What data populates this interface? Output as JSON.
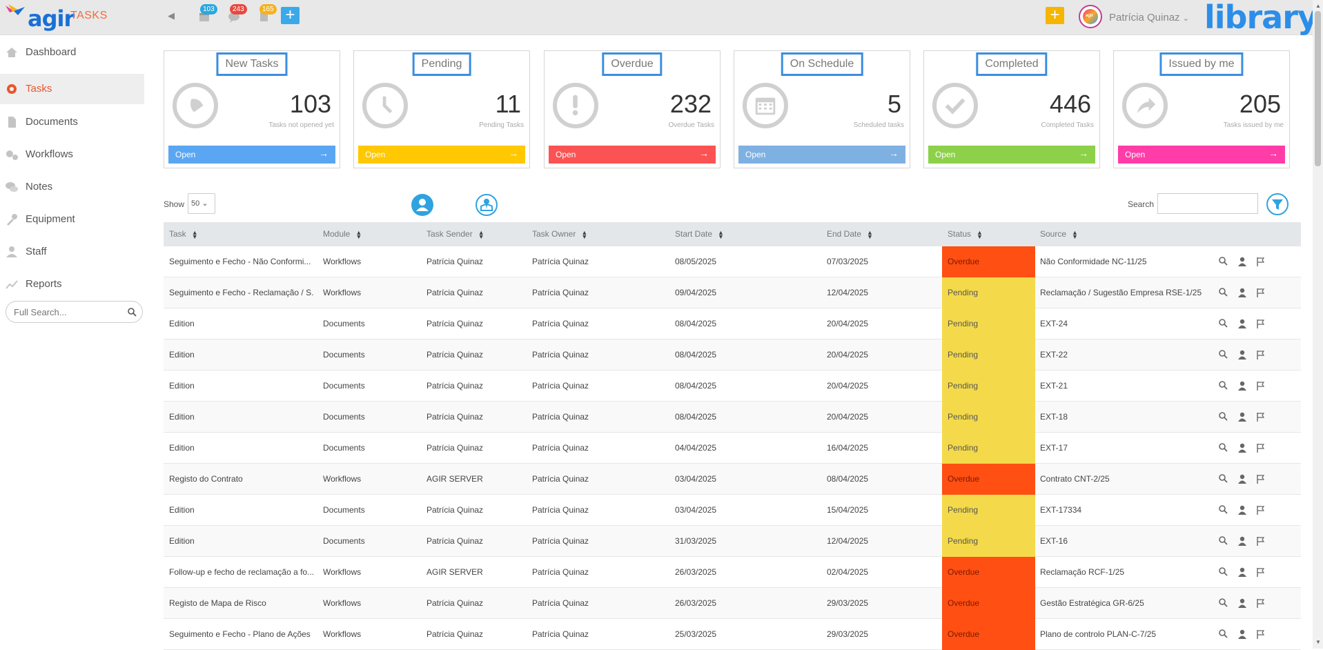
{
  "header": {
    "logo_text": "agir",
    "app_name": "TASKS",
    "badges": [
      {
        "icon": "calendar-icon",
        "count": "103",
        "color": "#29a8e0"
      },
      {
        "icon": "chat-icon",
        "count": "243",
        "color": "#e8483f"
      },
      {
        "icon": "document-icon",
        "count": "165",
        "color": "#f5b21c"
      }
    ],
    "user_name": "Patrícia Quinaz",
    "avatar_text": "agir",
    "library_label": "library",
    "colors": {
      "plus_blue": "#3aa9ea",
      "plus_yellow": "#f5b500"
    }
  },
  "sidebar": {
    "items": [
      {
        "label": "Dashboard",
        "icon": "home-icon"
      },
      {
        "label": "Tasks",
        "icon": "gear-icon",
        "active": true
      },
      {
        "label": "Documents",
        "icon": "document-icon"
      },
      {
        "label": "Workflows",
        "icon": "gears-icon"
      },
      {
        "label": "Notes",
        "icon": "chat-icon"
      },
      {
        "label": "Equipment",
        "icon": "wrench-icon"
      },
      {
        "label": "Staff",
        "icon": "person-icon"
      },
      {
        "label": "Reports",
        "icon": "chart-icon"
      }
    ],
    "search_placeholder": "Full Search..."
  },
  "cards": [
    {
      "title": "New Tasks",
      "count": "103",
      "subtitle": "Tasks not opened yet",
      "open": "Open",
      "color": "#5aa6f3",
      "icon": "bell-icon"
    },
    {
      "title": "Pending",
      "count": "11",
      "subtitle": "Pending Tasks",
      "open": "Open",
      "color": "#ffc800",
      "icon": "clock-icon"
    },
    {
      "title": "Overdue",
      "count": "232",
      "subtitle": "Overdue Tasks",
      "open": "Open",
      "color": "#fb5353",
      "icon": "exclamation-icon"
    },
    {
      "title": "On Schedule",
      "count": "5",
      "subtitle": "Scheduled tasks",
      "open": "Open",
      "color": "#7fb0e2",
      "icon": "calendar-icon"
    },
    {
      "title": "Completed",
      "count": "446",
      "subtitle": "Completed Tasks",
      "open": "Open",
      "color": "#8dd14a",
      "icon": "check-icon"
    },
    {
      "title": "Issued by me",
      "count": "205",
      "subtitle": "Tasks issued by me",
      "open": "Open",
      "color": "#ff3ca8",
      "icon": "share-arrow-icon"
    }
  ],
  "controls": {
    "show_label": "Show",
    "show_value": "50",
    "search_label": "Search"
  },
  "table": {
    "headers": [
      "Task",
      "Module",
      "Task Sender",
      "Task Owner",
      "Start Date",
      "End Date",
      "Status",
      "Source"
    ],
    "status_colors": {
      "Overdue": "#ff4f12",
      "Pending": "#f4da4a"
    },
    "rows": [
      {
        "task": "Seguimento e Fecho - Não Conformi...",
        "module": "Workflows",
        "sender": "Patrícia Quinaz",
        "owner": "Patrícia Quinaz",
        "start": "08/05/2025",
        "end": "07/03/2025",
        "status": "Overdue",
        "source": "Não Conformidade NC-11/25"
      },
      {
        "task": "Seguimento e Fecho - Reclamação / S...",
        "module": "Workflows",
        "sender": "Patrícia Quinaz",
        "owner": "Patrícia Quinaz",
        "start": "09/04/2025",
        "end": "12/04/2025",
        "status": "Pending",
        "source": "Reclamação / Sugestão Empresa RSE-1/25"
      },
      {
        "task": "Edition",
        "module": "Documents",
        "sender": "Patrícia Quinaz",
        "owner": "Patrícia Quinaz",
        "start": "08/04/2025",
        "end": "20/04/2025",
        "status": "Pending",
        "source": "EXT-24"
      },
      {
        "task": "Edition",
        "module": "Documents",
        "sender": "Patrícia Quinaz",
        "owner": "Patrícia Quinaz",
        "start": "08/04/2025",
        "end": "20/04/2025",
        "status": "Pending",
        "source": "EXT-22"
      },
      {
        "task": "Edition",
        "module": "Documents",
        "sender": "Patrícia Quinaz",
        "owner": "Patrícia Quinaz",
        "start": "08/04/2025",
        "end": "20/04/2025",
        "status": "Pending",
        "source": "EXT-21"
      },
      {
        "task": "Edition",
        "module": "Documents",
        "sender": "Patrícia Quinaz",
        "owner": "Patrícia Quinaz",
        "start": "08/04/2025",
        "end": "20/04/2025",
        "status": "Pending",
        "source": "EXT-18"
      },
      {
        "task": "Edition",
        "module": "Documents",
        "sender": "Patrícia Quinaz",
        "owner": "Patrícia Quinaz",
        "start": "04/04/2025",
        "end": "16/04/2025",
        "status": "Pending",
        "source": "EXT-17"
      },
      {
        "task": "Registo do Contrato",
        "module": "Workflows",
        "sender": "AGIR SERVER",
        "owner": "Patrícia Quinaz",
        "start": "03/04/2025",
        "end": "08/04/2025",
        "status": "Overdue",
        "source": "Contrato CNT-2/25"
      },
      {
        "task": "Edition",
        "module": "Documents",
        "sender": "Patrícia Quinaz",
        "owner": "Patrícia Quinaz",
        "start": "03/04/2025",
        "end": "15/04/2025",
        "status": "Pending",
        "source": "EXT-17334"
      },
      {
        "task": "Edition",
        "module": "Documents",
        "sender": "Patrícia Quinaz",
        "owner": "Patrícia Quinaz",
        "start": "31/03/2025",
        "end": "12/04/2025",
        "status": "Pending",
        "source": "EXT-16"
      },
      {
        "task": "Follow-up e fecho de reclamação a fo...",
        "module": "Workflows",
        "sender": "AGIR SERVER",
        "owner": "Patrícia Quinaz",
        "start": "26/03/2025",
        "end": "02/04/2025",
        "status": "Overdue",
        "source": "Reclamação RCF-1/25"
      },
      {
        "task": "Registo de Mapa de Risco",
        "module": "Workflows",
        "sender": "Patrícia Quinaz",
        "owner": "Patrícia Quinaz",
        "start": "26/03/2025",
        "end": "29/03/2025",
        "status": "Overdue",
        "source": "Gestão Estratégica GR-6/25"
      },
      {
        "task": "Seguimento e Fecho - Plano de Ações",
        "module": "Workflows",
        "sender": "Patrícia Quinaz",
        "owner": "Patrícia Quinaz",
        "start": "25/03/2025",
        "end": "29/03/2025",
        "status": "Overdue",
        "source": "Plano de controlo PLAN-C-7/25"
      }
    ],
    "row_actions": [
      "magnifier-icon",
      "person-icon",
      "flag-icon"
    ]
  }
}
